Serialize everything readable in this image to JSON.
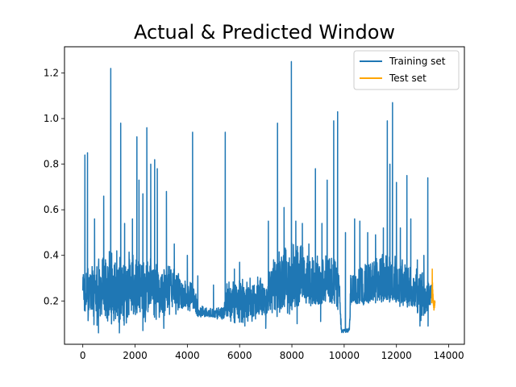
{
  "chart_data": {
    "type": "line",
    "title": "Actual & Predicted Window",
    "xlabel": "",
    "ylabel": "",
    "xlim": [
      -700,
      14600
    ],
    "ylim": [
      0.01,
      1.315
    ],
    "x_ticks": [
      0,
      2000,
      4000,
      6000,
      8000,
      10000,
      12000,
      14000
    ],
    "x_tick_labels": [
      "0",
      "2000",
      "4000",
      "6000",
      "8000",
      "10000",
      "12000",
      "14000"
    ],
    "y_ticks": [
      0.2,
      0.4,
      0.6,
      0.8,
      1.0,
      1.2
    ],
    "y_tick_labels": [
      "0.2",
      "0.4",
      "0.6",
      "0.8",
      "1.0",
      "1.2"
    ],
    "legend": {
      "placement": "upper right",
      "entries": [
        "Training set",
        "Test set"
      ]
    },
    "grid": false,
    "series": [
      {
        "name": "Training set",
        "color": "#1f77b4",
        "x_range": [
          0,
          13350
        ],
        "baseline": [
          [
            0,
            0.22
          ],
          [
            500,
            0.22
          ],
          [
            1000,
            0.24
          ],
          [
            1500,
            0.23
          ],
          [
            2000,
            0.25
          ],
          [
            2500,
            0.24
          ],
          [
            3000,
            0.22
          ],
          [
            3500,
            0.23
          ],
          [
            4000,
            0.21
          ],
          [
            4300,
            0.2
          ],
          [
            4400,
            0.15
          ],
          [
            5000,
            0.14
          ],
          [
            5400,
            0.15
          ],
          [
            5500,
            0.19
          ],
          [
            6000,
            0.2
          ],
          [
            6500,
            0.19
          ],
          [
            7000,
            0.2
          ],
          [
            7400,
            0.24
          ],
          [
            8000,
            0.26
          ],
          [
            8500,
            0.25
          ],
          [
            9000,
            0.24
          ],
          [
            9500,
            0.24
          ],
          [
            9800,
            0.22
          ],
          [
            9900,
            0.07
          ],
          [
            10200,
            0.07
          ],
          [
            10250,
            0.2
          ],
          [
            11000,
            0.21
          ],
          [
            11500,
            0.24
          ],
          [
            12000,
            0.23
          ],
          [
            12500,
            0.22
          ],
          [
            13000,
            0.21
          ],
          [
            13350,
            0.2
          ]
        ],
        "band_top": [
          [
            0,
            0.34
          ],
          [
            500,
            0.38
          ],
          [
            1000,
            0.42
          ],
          [
            1500,
            0.4
          ],
          [
            2000,
            0.44
          ],
          [
            2500,
            0.42
          ],
          [
            3000,
            0.37
          ],
          [
            3500,
            0.35
          ],
          [
            4000,
            0.3
          ],
          [
            4300,
            0.28
          ],
          [
            4400,
            0.18
          ],
          [
            5000,
            0.17
          ],
          [
            5400,
            0.18
          ],
          [
            5500,
            0.28
          ],
          [
            6000,
            0.3
          ],
          [
            6500,
            0.29
          ],
          [
            7000,
            0.33
          ],
          [
            7400,
            0.42
          ],
          [
            8000,
            0.46
          ],
          [
            8500,
            0.44
          ],
          [
            9000,
            0.42
          ],
          [
            9500,
            0.4
          ],
          [
            9800,
            0.36
          ],
          [
            9900,
            0.08
          ],
          [
            10200,
            0.08
          ],
          [
            10250,
            0.34
          ],
          [
            11000,
            0.37
          ],
          [
            11500,
            0.42
          ],
          [
            12000,
            0.4
          ],
          [
            12500,
            0.36
          ],
          [
            13000,
            0.33
          ],
          [
            13350,
            0.28
          ]
        ],
        "band_bottom": [
          [
            0,
            0.12
          ],
          [
            500,
            0.09
          ],
          [
            1000,
            0.1
          ],
          [
            1500,
            0.09
          ],
          [
            2000,
            0.1
          ],
          [
            2500,
            0.1
          ],
          [
            3000,
            0.12
          ],
          [
            3500,
            0.14
          ],
          [
            4000,
            0.15
          ],
          [
            4300,
            0.15
          ],
          [
            4400,
            0.13
          ],
          [
            5000,
            0.12
          ],
          [
            5400,
            0.12
          ],
          [
            5500,
            0.11
          ],
          [
            6000,
            0.1
          ],
          [
            6500,
            0.09
          ],
          [
            7000,
            0.12
          ],
          [
            7400,
            0.13
          ],
          [
            8000,
            0.14
          ],
          [
            8500,
            0.15
          ],
          [
            9000,
            0.16
          ],
          [
            9500,
            0.17
          ],
          [
            9800,
            0.13
          ],
          [
            9900,
            0.06
          ],
          [
            10200,
            0.06
          ],
          [
            10250,
            0.18
          ],
          [
            11000,
            0.18
          ],
          [
            11500,
            0.19
          ],
          [
            12000,
            0.18
          ],
          [
            12500,
            0.16
          ],
          [
            13000,
            0.09
          ],
          [
            13350,
            0.18
          ]
        ],
        "spikes": [
          [
            80,
            0.84
          ],
          [
            180,
            0.85
          ],
          [
            450,
            0.56
          ],
          [
            800,
            0.66
          ],
          [
            1070,
            1.22
          ],
          [
            1300,
            0.42
          ],
          [
            1450,
            0.98
          ],
          [
            1600,
            0.54
          ],
          [
            1900,
            0.56
          ],
          [
            2070,
            0.92
          ],
          [
            2150,
            0.73
          ],
          [
            2300,
            0.67
          ],
          [
            2450,
            0.96
          ],
          [
            2600,
            0.8
          ],
          [
            2750,
            0.82
          ],
          [
            2850,
            0.78
          ],
          [
            3200,
            0.68
          ],
          [
            3500,
            0.45
          ],
          [
            4000,
            0.4
          ],
          [
            4200,
            0.94
          ],
          [
            4400,
            0.31
          ],
          [
            5000,
            0.27
          ],
          [
            5450,
            0.94
          ],
          [
            5800,
            0.34
          ],
          [
            6000,
            0.37
          ],
          [
            6400,
            0.3
          ],
          [
            6800,
            0.3
          ],
          [
            7100,
            0.55
          ],
          [
            7450,
            0.98
          ],
          [
            7700,
            0.61
          ],
          [
            7980,
            1.25
          ],
          [
            8150,
            0.55
          ],
          [
            8400,
            0.54
          ],
          [
            8650,
            0.45
          ],
          [
            8900,
            0.78
          ],
          [
            9150,
            0.54
          ],
          [
            9350,
            0.73
          ],
          [
            9600,
            0.99
          ],
          [
            9750,
            1.03
          ],
          [
            10050,
            0.5
          ],
          [
            10400,
            0.56
          ],
          [
            10600,
            0.55
          ],
          [
            10900,
            0.5
          ],
          [
            11200,
            0.49
          ],
          [
            11500,
            0.52
          ],
          [
            11650,
            0.99
          ],
          [
            11750,
            0.8
          ],
          [
            11850,
            1.07
          ],
          [
            12000,
            0.72
          ],
          [
            12150,
            0.52
          ],
          [
            12400,
            0.75
          ],
          [
            12550,
            0.56
          ],
          [
            12800,
            0.38
          ],
          [
            13050,
            0.4
          ],
          [
            13200,
            0.74
          ]
        ],
        "dips": [
          [
            600,
            0.06
          ],
          [
            1400,
            0.06
          ],
          [
            2300,
            0.07
          ],
          [
            3100,
            0.08
          ],
          [
            5400,
            0.13
          ],
          [
            6200,
            0.09
          ],
          [
            7000,
            0.08
          ],
          [
            8200,
            0.1
          ],
          [
            9100,
            0.11
          ],
          [
            12900,
            0.09
          ],
          [
            13210,
            0.09
          ]
        ]
      },
      {
        "name": "Test set",
        "color": "#ffa500",
        "x_range": [
          13350,
          13480
        ],
        "points": [
          [
            13350,
            0.19
          ],
          [
            13360,
            0.26
          ],
          [
            13365,
            0.21
          ],
          [
            13370,
            0.34
          ],
          [
            13375,
            0.24
          ],
          [
            13380,
            0.28
          ],
          [
            13385,
            0.21
          ],
          [
            13390,
            0.25
          ],
          [
            13395,
            0.2
          ],
          [
            13400,
            0.23
          ],
          [
            13405,
            0.19
          ],
          [
            13410,
            0.21
          ],
          [
            13415,
            0.18
          ],
          [
            13420,
            0.2
          ],
          [
            13425,
            0.17
          ],
          [
            13430,
            0.2
          ],
          [
            13435,
            0.16
          ],
          [
            13440,
            0.19
          ],
          [
            13445,
            0.18
          ],
          [
            13450,
            0.2
          ],
          [
            13455,
            0.17
          ],
          [
            13460,
            0.19
          ],
          [
            13465,
            0.18
          ],
          [
            13470,
            0.2
          ],
          [
            13475,
            0.19
          ],
          [
            13480,
            0.19
          ]
        ]
      }
    ]
  }
}
